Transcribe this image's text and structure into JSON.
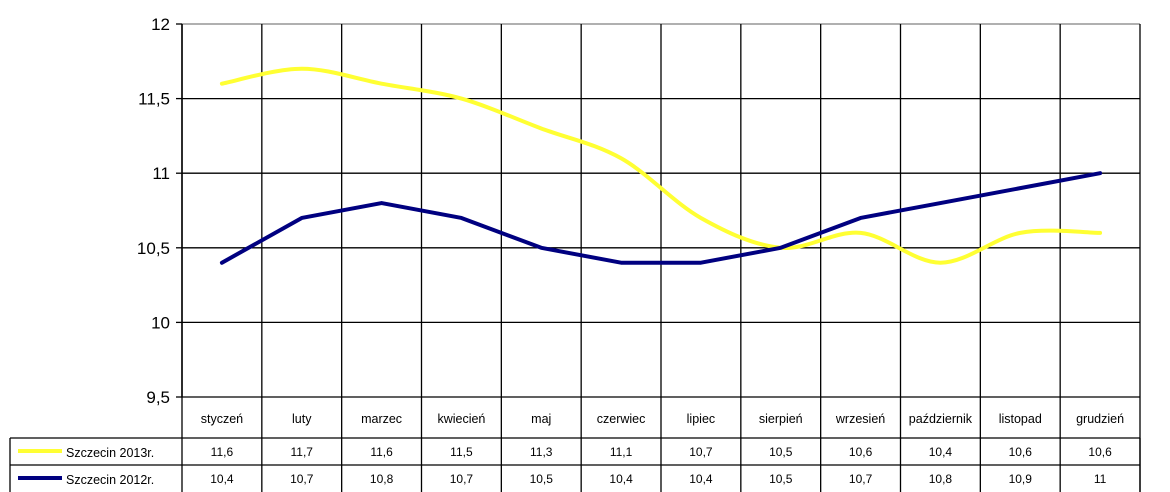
{
  "chart_data": {
    "type": "line",
    "categories": [
      "styczeń",
      "luty",
      "marzec",
      "kwiecień",
      "maj",
      "czerwiec",
      "lipiec",
      "sierpień",
      "wrzesień",
      "październik",
      "listopad",
      "grudzień"
    ],
    "series": [
      {
        "name": "Szczecin 2013r.",
        "color": "#ffff33",
        "values": [
          11.6,
          11.7,
          11.6,
          11.5,
          11.3,
          11.1,
          10.7,
          10.5,
          10.6,
          10.4,
          10.6,
          10.6
        ],
        "labels": [
          "11,6",
          "11,7",
          "11,6",
          "11,5",
          "11,3",
          "11,1",
          "10,7",
          "10,5",
          "10,6",
          "10,4",
          "10,6",
          "10,6"
        ]
      },
      {
        "name": "Szczecin 2012r.",
        "color": "#000080",
        "values": [
          10.4,
          10.7,
          10.8,
          10.7,
          10.5,
          10.4,
          10.4,
          10.5,
          10.7,
          10.8,
          10.9,
          11.0
        ],
        "labels": [
          "10,4",
          "10,7",
          "10,8",
          "10,7",
          "10,5",
          "10,4",
          "10,4",
          "10,5",
          "10,7",
          "10,8",
          "10,9",
          "11"
        ]
      }
    ],
    "yticks": [
      {
        "value": 9.5,
        "label": "9,5"
      },
      {
        "value": 10,
        "label": "10"
      },
      {
        "value": 10.5,
        "label": "10,5"
      },
      {
        "value": 11,
        "label": "11"
      },
      {
        "value": 11.5,
        "label": "11,5"
      },
      {
        "value": 12,
        "label": "12"
      }
    ],
    "ylim": [
      9.5,
      12
    ],
    "grid": true,
    "legend": "data-table-below",
    "title": "",
    "xlabel": "",
    "ylabel": ""
  }
}
